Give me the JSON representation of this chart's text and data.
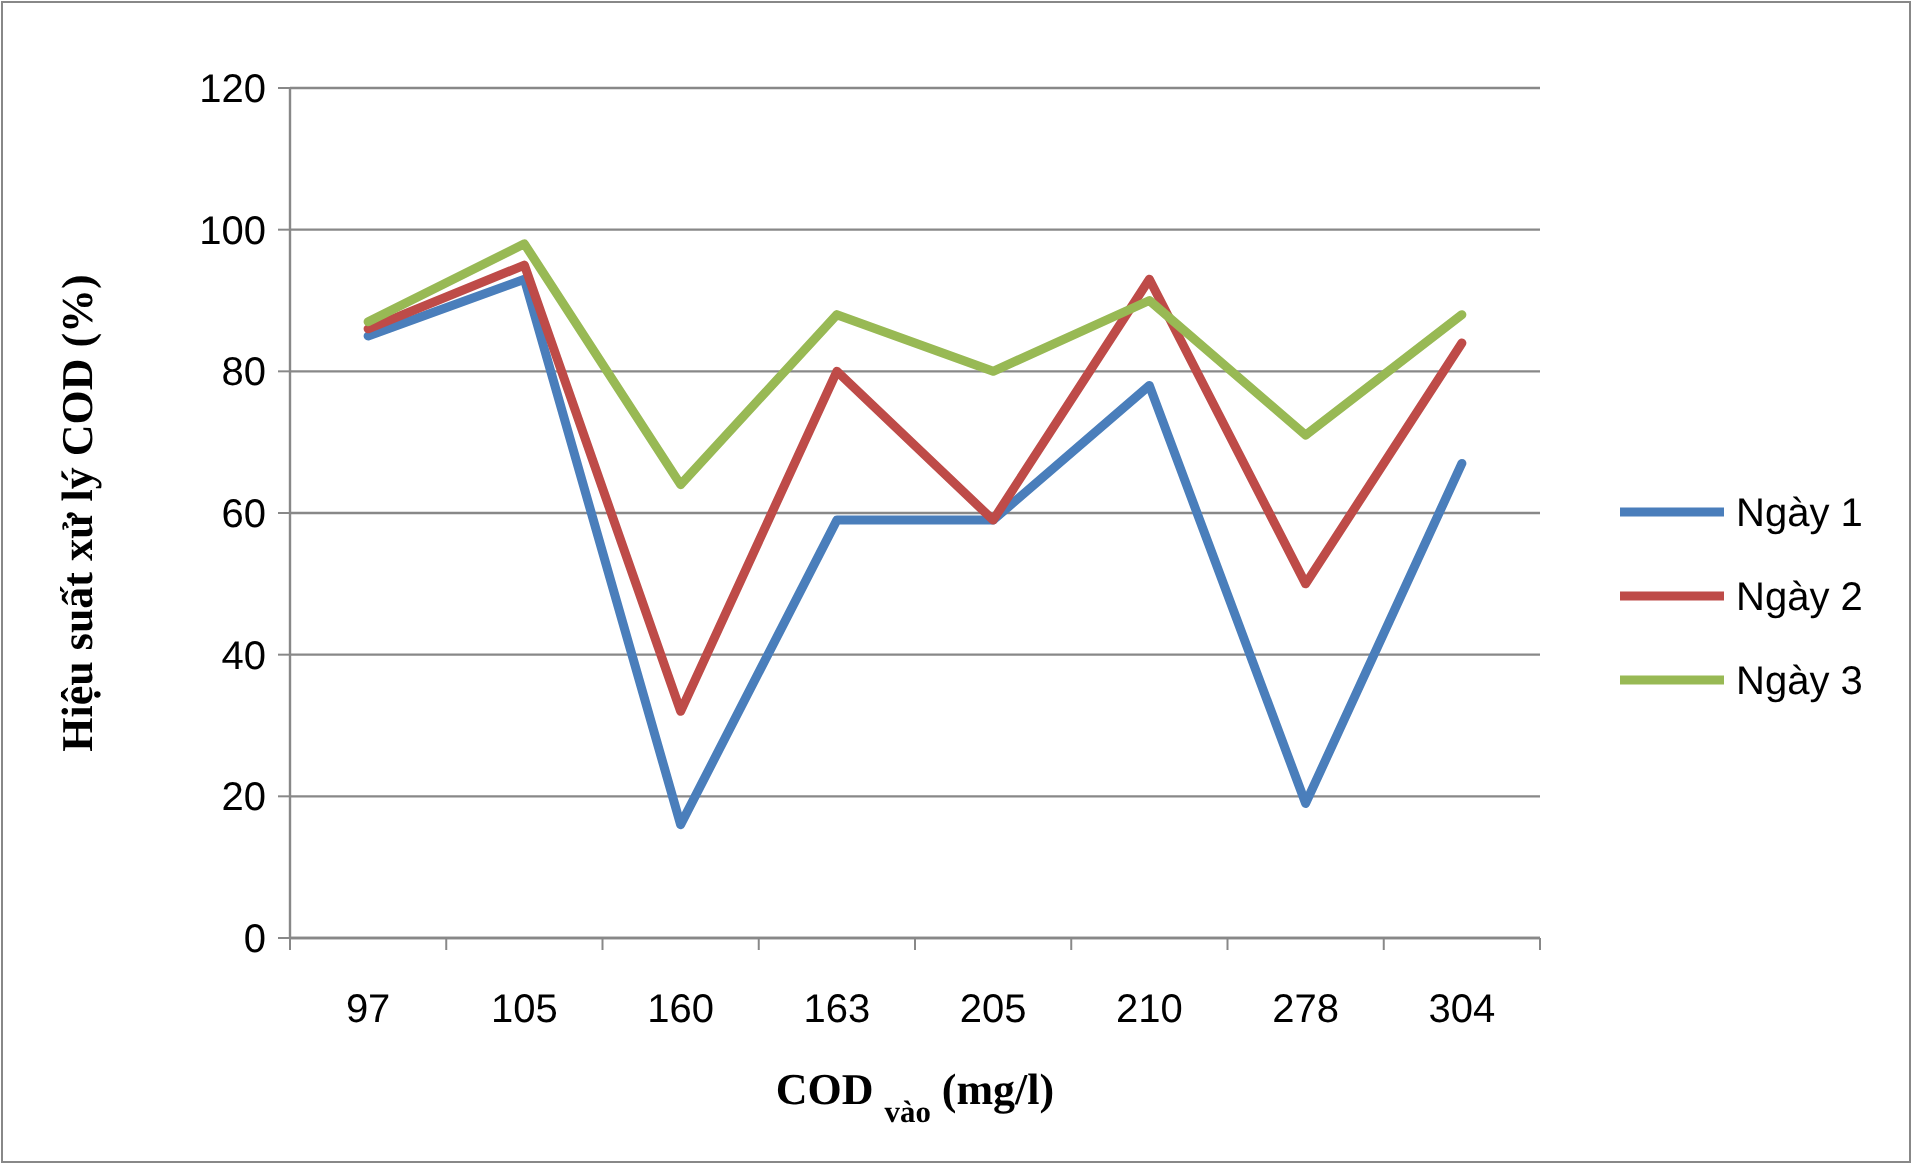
{
  "chart_data": {
    "type": "line",
    "xlabel": "COD $_{vào}$ (mg/l)",
    "ylabel": "Hiệu suất xử lý COD (%)",
    "categories": [
      "97",
      "105",
      "160",
      "163",
      "205",
      "210",
      "278",
      "304"
    ],
    "series": [
      {
        "name": "Ngày 1",
        "color": "#4a7ebb",
        "values": [
          85,
          93,
          16,
          59,
          59,
          78,
          19,
          67
        ]
      },
      {
        "name": "Ngày 2",
        "color": "#be4b48",
        "values": [
          86,
          95,
          32,
          80,
          59,
          93,
          50,
          84
        ]
      },
      {
        "name": "Ngày 3",
        "color": "#98b954",
        "values": [
          87,
          98,
          64,
          88,
          80,
          90,
          71,
          88
        ]
      }
    ],
    "ylim": [
      0,
      120
    ],
    "yticks": [
      0,
      20,
      40,
      60,
      80,
      100,
      120
    ],
    "grid": "y",
    "legend": "right",
    "marker": "none",
    "line_style": "solid"
  }
}
